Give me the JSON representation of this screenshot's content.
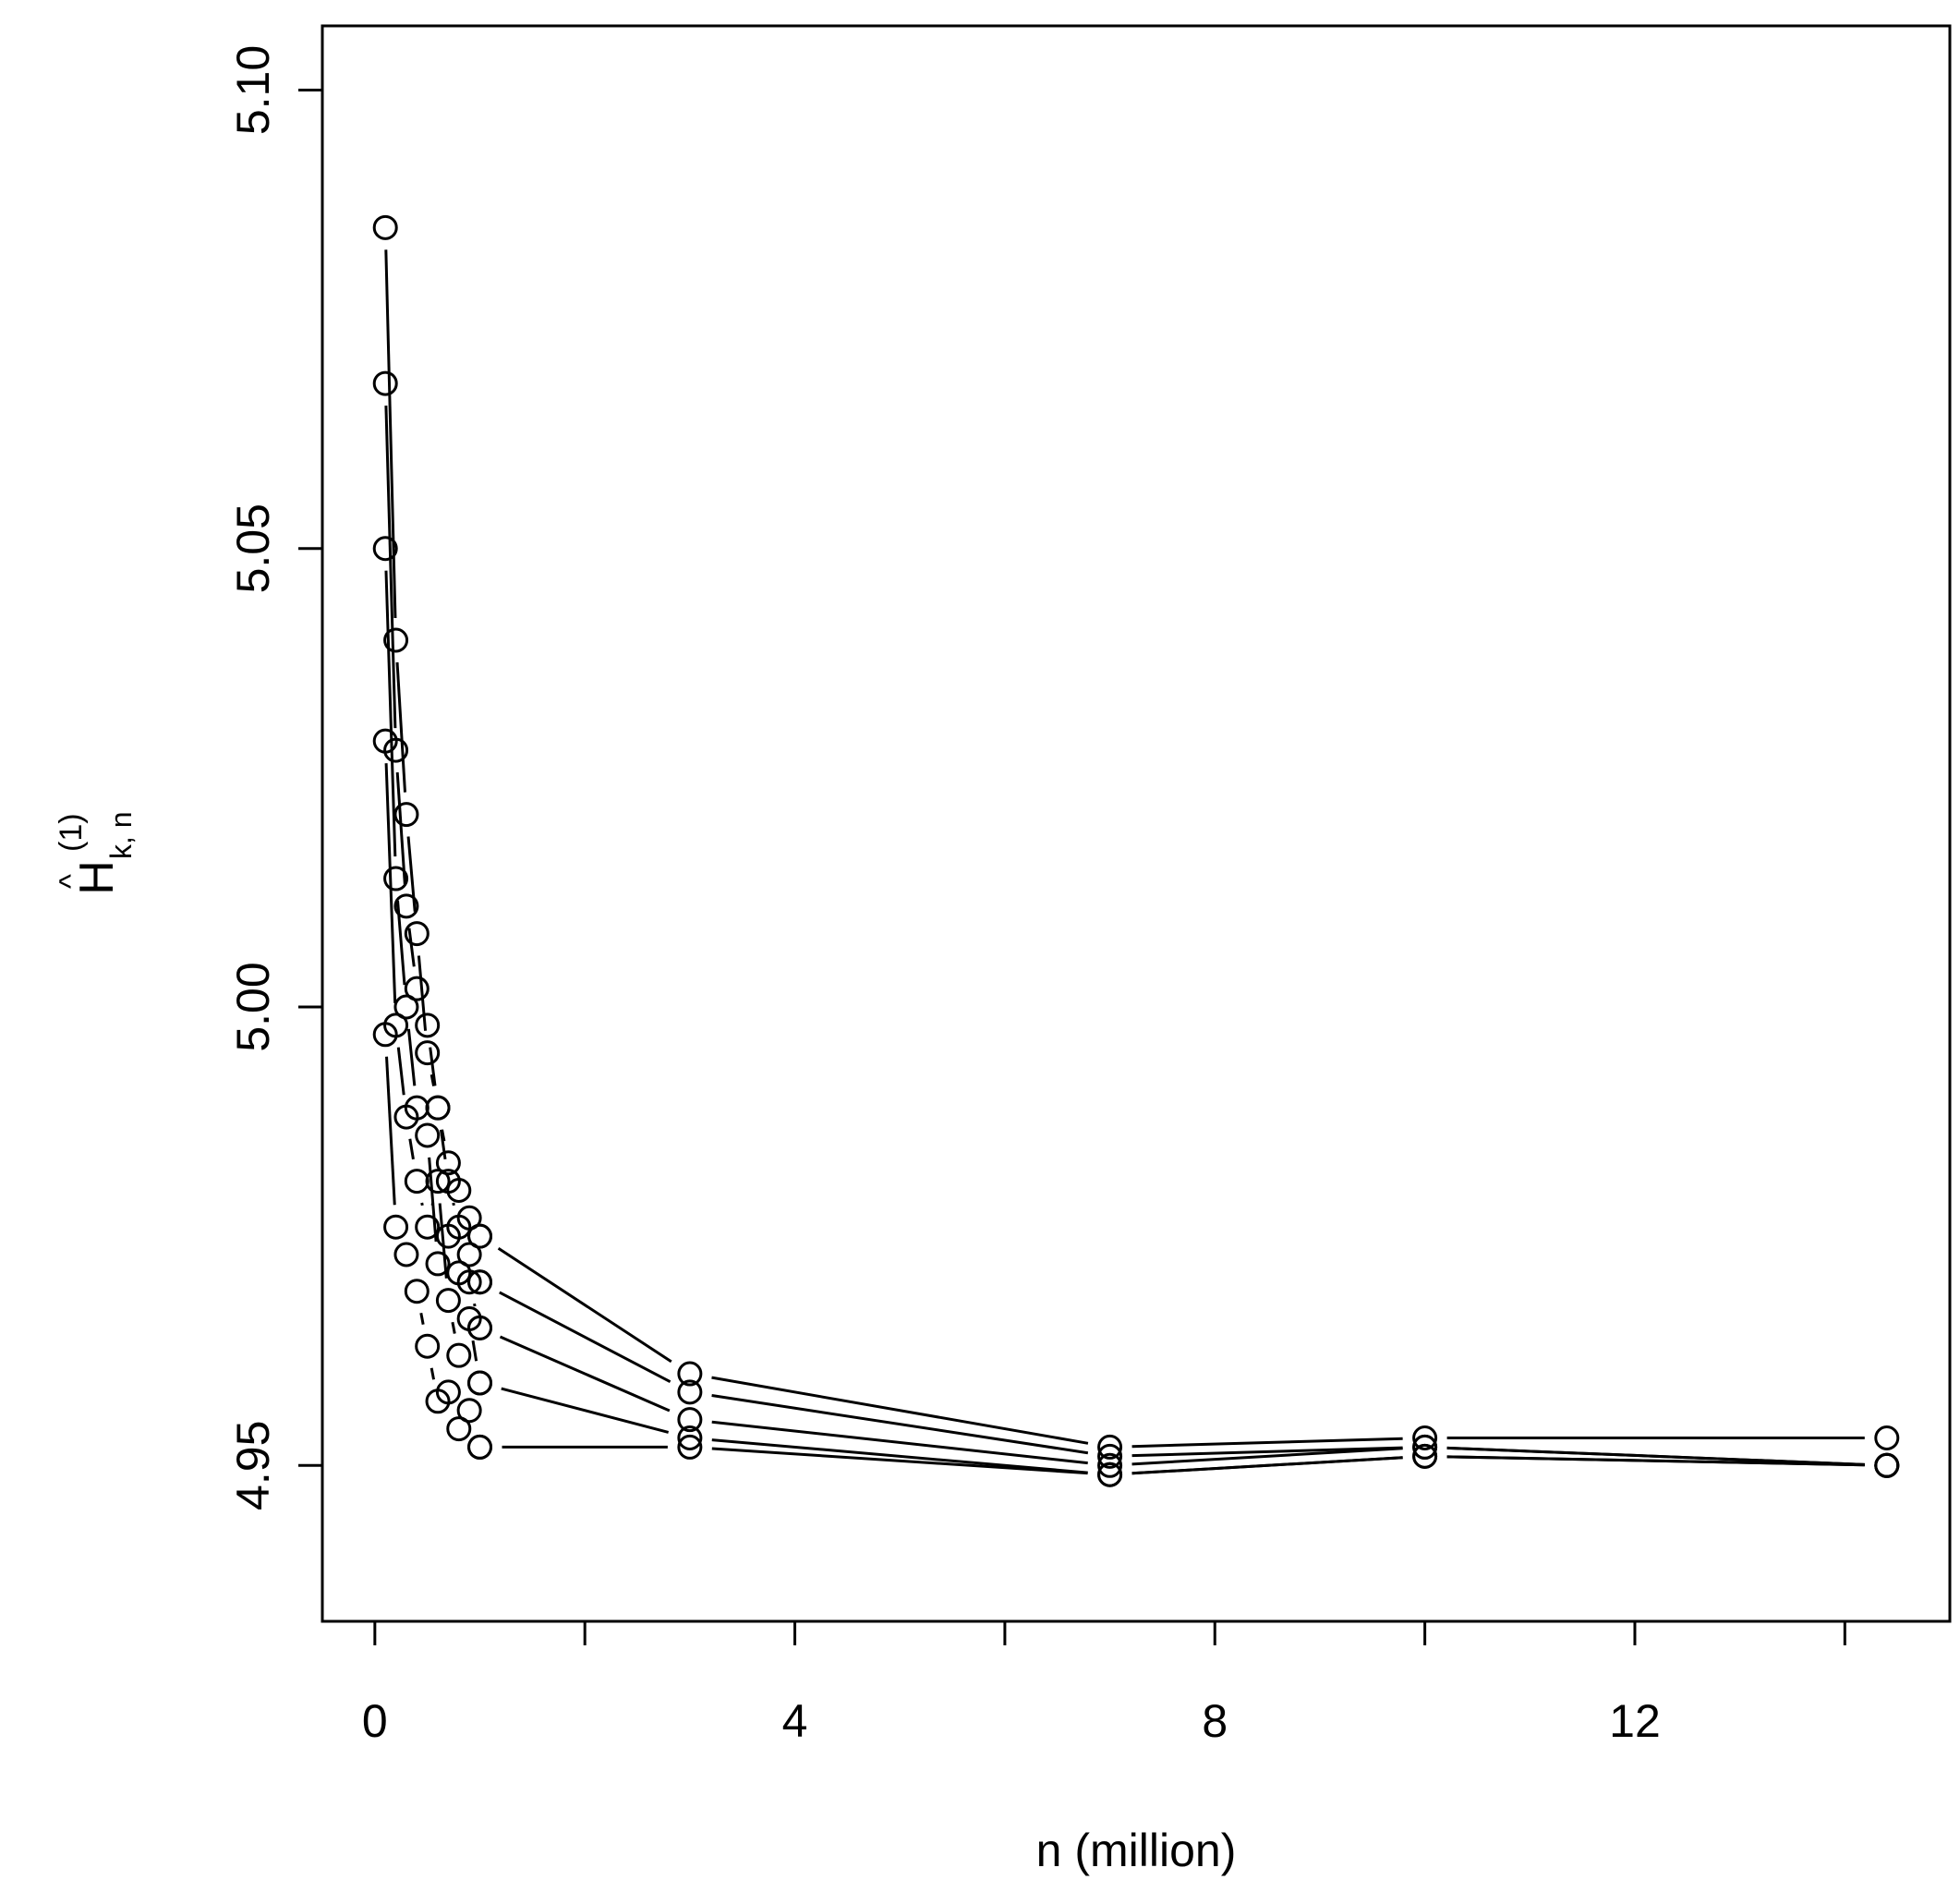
{
  "chart_data": {
    "type": "scatter",
    "xlabel": "n (million)",
    "ylabel": {
      "base": "H",
      "hat": "^",
      "sup": "(1)",
      "sub": "k, n"
    },
    "xlim": [
      -0.5,
      15.0
    ],
    "ylim": [
      4.933,
      5.107
    ],
    "x_ticks": [
      0,
      2,
      4,
      6,
      8,
      10,
      12,
      14
    ],
    "x_tick_labels": [
      {
        "value": 0,
        "label": "0"
      },
      {
        "value": 4,
        "label": "4"
      },
      {
        "value": 8,
        "label": "8"
      },
      {
        "value": 12,
        "label": "12"
      }
    ],
    "y_ticks": [
      {
        "value": 4.95,
        "label": "4.95"
      },
      {
        "value": 5.0,
        "label": "5.00"
      },
      {
        "value": 5.05,
        "label": "5.05"
      },
      {
        "value": 5.1,
        "label": "5.10"
      }
    ],
    "grid": false,
    "marker": "open-circle",
    "series": [
      {
        "x": [
          0.1,
          0.2,
          0.3,
          0.4,
          0.5,
          0.6,
          0.7,
          0.8,
          0.9,
          1.0
        ],
        "y": [
          5.085,
          5.04,
          5.021,
          5.008,
          4.995,
          4.989,
          4.983,
          4.98,
          4.977,
          4.975
        ]
      },
      {
        "x": [
          0.1,
          0.2,
          0.3,
          0.4,
          0.5,
          0.6,
          0.7,
          0.8,
          0.9,
          1.0
        ],
        "y": [
          5.068,
          5.028,
          5.011,
          5.002,
          4.998,
          4.989,
          4.981,
          4.976,
          4.973,
          4.97
        ]
      },
      {
        "x": [
          0.1,
          0.2,
          0.3,
          0.4,
          0.5,
          0.6,
          0.7,
          0.8,
          0.9,
          1.0
        ],
        "y": [
          5.05,
          5.014,
          5.0,
          4.989,
          4.986,
          4.972,
          4.975,
          4.971,
          4.97,
          4.965
        ]
      },
      {
        "x": [
          0.1,
          0.2,
          0.3,
          0.4,
          0.5,
          0.6,
          0.7,
          0.8,
          0.9,
          1.0
        ],
        "y": [
          5.029,
          4.998,
          4.988,
          4.981,
          4.976,
          4.981,
          4.968,
          4.962,
          4.966,
          4.959
        ]
      },
      {
        "x": [
          0.1,
          0.2,
          0.3,
          0.4,
          0.5,
          0.6,
          0.7,
          0.8,
          0.9,
          1.0
        ],
        "y": [
          4.997,
          4.976,
          4.973,
          4.969,
          4.963,
          4.957,
          4.958,
          4.954,
          4.956,
          4.952
        ]
      },
      {
        "x": [
          1.0,
          3.0,
          7.0,
          10.0,
          14.4
        ],
        "y": [
          4.975,
          4.96,
          4.952,
          4.953,
          4.953
        ]
      },
      {
        "x": [
          1.0,
          3.0,
          7.0,
          10.0,
          14.4
        ],
        "y": [
          4.97,
          4.958,
          4.951,
          4.952,
          4.95
        ]
      },
      {
        "x": [
          1.0,
          3.0,
          7.0,
          10.0,
          14.4
        ],
        "y": [
          4.965,
          4.955,
          4.95,
          4.952,
          4.95
        ]
      },
      {
        "x": [
          1.0,
          3.0,
          7.0,
          10.0,
          14.4
        ],
        "y": [
          4.959,
          4.953,
          4.949,
          4.951,
          4.95
        ]
      },
      {
        "x": [
          1.0,
          3.0,
          7.0,
          10.0,
          14.4
        ],
        "y": [
          4.952,
          4.952,
          4.949,
          4.951,
          4.95
        ]
      }
    ]
  }
}
